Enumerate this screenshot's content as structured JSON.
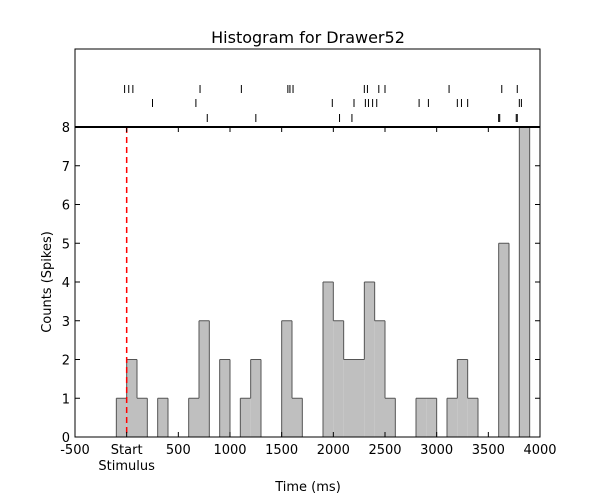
{
  "chart_data": {
    "type": "histogram",
    "title": "Histogram for Drawer52",
    "xlabel": "Time (ms)",
    "ylabel": "Counts (Spikes)",
    "xlim": [
      -500,
      4000
    ],
    "ylim": [
      0,
      8
    ],
    "x_ticks": [
      -500,
      0,
      500,
      1000,
      1500,
      2000,
      2500,
      3000,
      3500,
      4000
    ],
    "x_tick_labels": [
      "-500",
      "Start",
      "500",
      "1000",
      "1500",
      "2000",
      "2500",
      "3000",
      "3500",
      "4000"
    ],
    "x_tick_sublabels": [
      "",
      "Stimulus",
      "",
      "",
      "",
      "",
      "",
      "",
      "",
      ""
    ],
    "y_ticks": [
      0,
      1,
      2,
      3,
      4,
      5,
      6,
      7,
      8
    ],
    "stimulus_marker": {
      "x": 0,
      "color": "#ff0000",
      "style": "dashed"
    },
    "bar_color": "#bfbfbf",
    "edge_color": "#555555",
    "bin_width": 100,
    "bins": [
      {
        "start": -100,
        "count": 1
      },
      {
        "start": 0,
        "count": 2
      },
      {
        "start": 100,
        "count": 1
      },
      {
        "start": 200,
        "count": 0
      },
      {
        "start": 300,
        "count": 1
      },
      {
        "start": 400,
        "count": 0
      },
      {
        "start": 500,
        "count": 0
      },
      {
        "start": 600,
        "count": 1
      },
      {
        "start": 700,
        "count": 3
      },
      {
        "start": 800,
        "count": 0
      },
      {
        "start": 900,
        "count": 2
      },
      {
        "start": 1000,
        "count": 0
      },
      {
        "start": 1100,
        "count": 1
      },
      {
        "start": 1200,
        "count": 2
      },
      {
        "start": 1300,
        "count": 0
      },
      {
        "start": 1400,
        "count": 0
      },
      {
        "start": 1500,
        "count": 3
      },
      {
        "start": 1600,
        "count": 1
      },
      {
        "start": 1700,
        "count": 0
      },
      {
        "start": 1800,
        "count": 0
      },
      {
        "start": 1900,
        "count": 4
      },
      {
        "start": 2000,
        "count": 3
      },
      {
        "start": 2100,
        "count": 2
      },
      {
        "start": 2200,
        "count": 2
      },
      {
        "start": 2300,
        "count": 4
      },
      {
        "start": 2400,
        "count": 3
      },
      {
        "start": 2500,
        "count": 1
      },
      {
        "start": 2600,
        "count": 0
      },
      {
        "start": 2700,
        "count": 0
      },
      {
        "start": 2800,
        "count": 1
      },
      {
        "start": 2900,
        "count": 1
      },
      {
        "start": 3000,
        "count": 0
      },
      {
        "start": 3100,
        "count": 1
      },
      {
        "start": 3200,
        "count": 2
      },
      {
        "start": 3300,
        "count": 1
      },
      {
        "start": 3400,
        "count": 0
      },
      {
        "start": 3500,
        "count": 0
      },
      {
        "start": 3600,
        "count": 5
      },
      {
        "start": 3700,
        "count": 0
      },
      {
        "start": 3800,
        "count": 8
      }
    ],
    "raster": {
      "trials": [
        [
          -20,
          20,
          60,
          710,
          1110,
          1560,
          1580,
          1610,
          2300,
          2330,
          2440,
          2500,
          3120,
          3630,
          3780
        ],
        [
          250,
          670,
          1990,
          2200,
          2310,
          2340,
          2380,
          2420,
          2830,
          2920,
          3200,
          3240,
          3300,
          3800,
          3820
        ],
        [
          780,
          1250,
          2060,
          2180,
          3600,
          3610,
          3770,
          3780
        ]
      ]
    }
  }
}
